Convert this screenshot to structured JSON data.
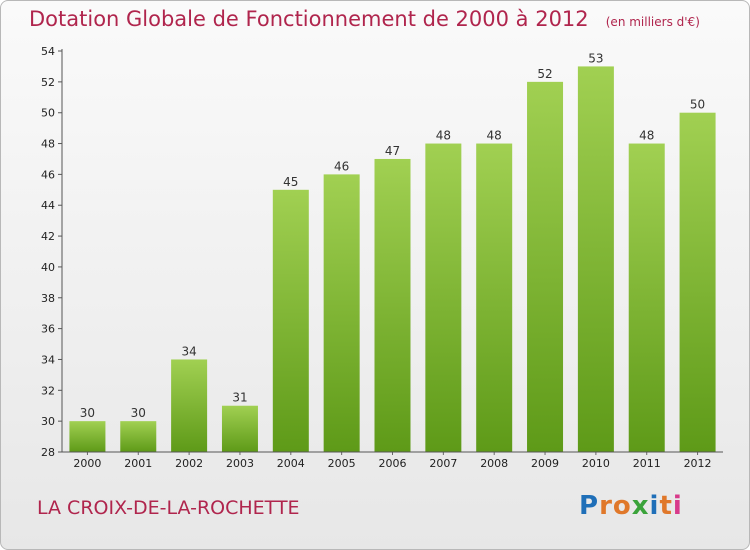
{
  "header": {
    "title": "Dotation Globale de Fonctionnement de 2000 à 2012",
    "unit": "(en milliers d'€)"
  },
  "footer": {
    "commune": "LA CROIX-DE-LA-ROCHETTE",
    "logo_text": "Proxiti",
    "logo_colors": [
      "#1f6fb8",
      "#e0782a",
      "#e0782a",
      "#3aa33a",
      "#1f6fb8",
      "#e0782a",
      "#d83a8a"
    ]
  },
  "chart_data": {
    "type": "bar",
    "title": "Dotation Globale de Fonctionnement de 2000 à 2012",
    "subtitle": "(en milliers d'€)",
    "xlabel": "",
    "ylabel": "",
    "categories": [
      "2000",
      "2001",
      "2002",
      "2003",
      "2004",
      "2005",
      "2006",
      "2007",
      "2008",
      "2009",
      "2010",
      "2011",
      "2012"
    ],
    "values": [
      30,
      30,
      34,
      31,
      45,
      46,
      47,
      48,
      48,
      52,
      53,
      48,
      50
    ],
    "ylim": [
      28,
      54
    ],
    "yticks": [
      28,
      30,
      32,
      34,
      36,
      38,
      40,
      42,
      44,
      46,
      48,
      50,
      52,
      54
    ],
    "grid": false,
    "legend": "none",
    "bar_color_top": "#a1d052",
    "bar_color_bottom": "#5e9a18"
  }
}
